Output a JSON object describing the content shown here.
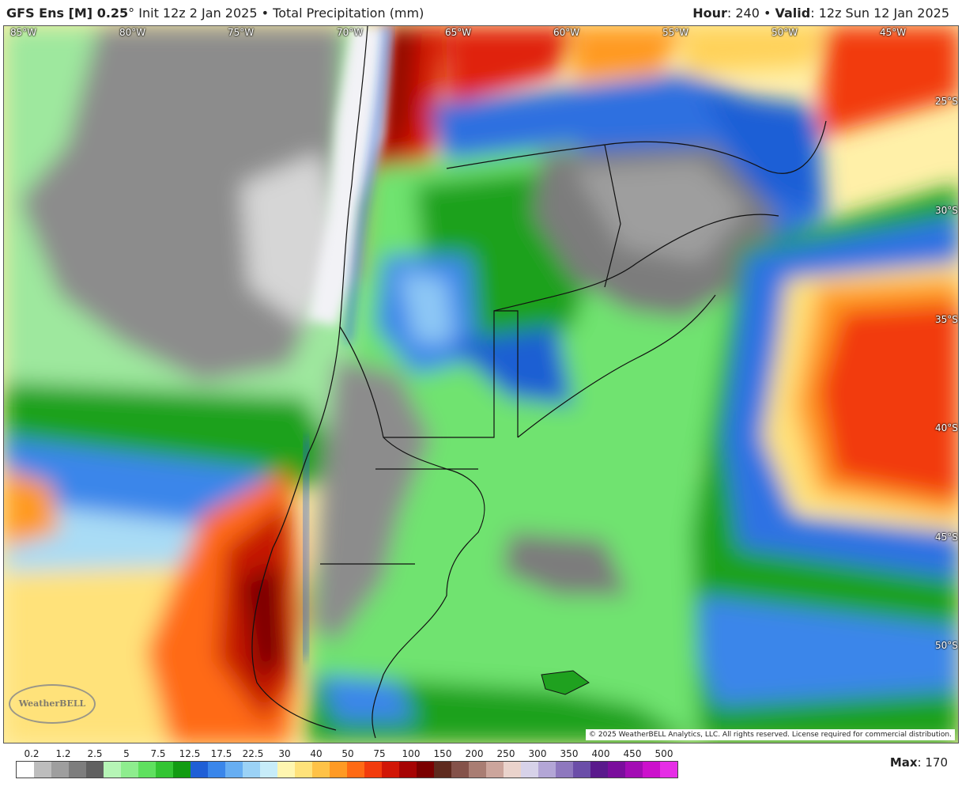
{
  "header": {
    "title_bold": "GFS Ens [M] 0.25",
    "title_degree": "°",
    "init": "Init 12z 2 Jan 2025",
    "bullet": "•",
    "variable": "Total Precipitation (mm)",
    "hour_label": "Hour",
    "hour_value": ": 240",
    "valid_label": "Valid",
    "valid_value": ": 12z Sun 12 Jan 2025"
  },
  "map": {
    "lon_labels": [
      "85°W",
      "80°W",
      "75°W",
      "70°W",
      "65°W",
      "60°W",
      "55°W",
      "50°W",
      "45°W"
    ],
    "lat_labels": [
      "25°S",
      "30°S",
      "35°S",
      "40°S",
      "45°S",
      "50°S"
    ],
    "credit": "© 2025 WeatherBELL Analytics, LLC. All rights reserved. License required for commercial distribution.",
    "logo_text": "WeatherBELL"
  },
  "legend": {
    "labels": [
      "0.2",
      "1.2",
      "2.5",
      "5",
      "7.5",
      "12.5",
      "17.5",
      "22.5",
      "30",
      "40",
      "50",
      "75",
      "100",
      "150",
      "200",
      "250",
      "300",
      "350",
      "400",
      "450",
      "500"
    ],
    "colors": [
      "#ffffff",
      "#bdbdbd",
      "#9e9e9e",
      "#7d7d7d",
      "#606060",
      "#b6f5b6",
      "#8eed8e",
      "#5fe05f",
      "#33c433",
      "#129b12",
      "#1f5fd6",
      "#3a86ea",
      "#67aef2",
      "#9bd2f6",
      "#c7ecf9",
      "#fff6b0",
      "#ffe27a",
      "#ffc247",
      "#ff9a24",
      "#ff6a14",
      "#f23b0c",
      "#d11606",
      "#a60404",
      "#7a0000",
      "#5e2a1e",
      "#84524a",
      "#a97d73",
      "#cca59c",
      "#ead3cc",
      "#d7d2e9",
      "#b3a6d6",
      "#8e78be",
      "#6b4ea8",
      "#5a1a8c",
      "#7a0e9c",
      "#a30cb4",
      "#cc10cc",
      "#e62ee6"
    ],
    "max_label": "Max",
    "max_value": ": 170"
  }
}
